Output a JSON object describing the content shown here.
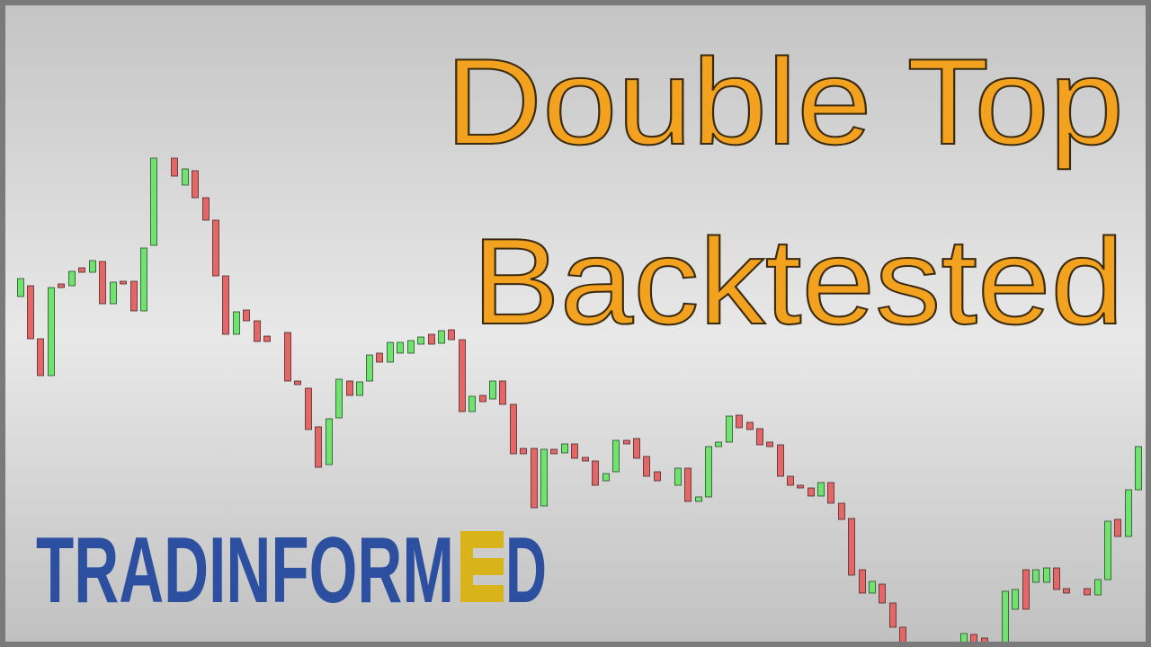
{
  "title": {
    "line1": "Double Top",
    "line2": "Backtested"
  },
  "logo": {
    "text_before": "TRADINFORM",
    "text_after": "D"
  }
}
